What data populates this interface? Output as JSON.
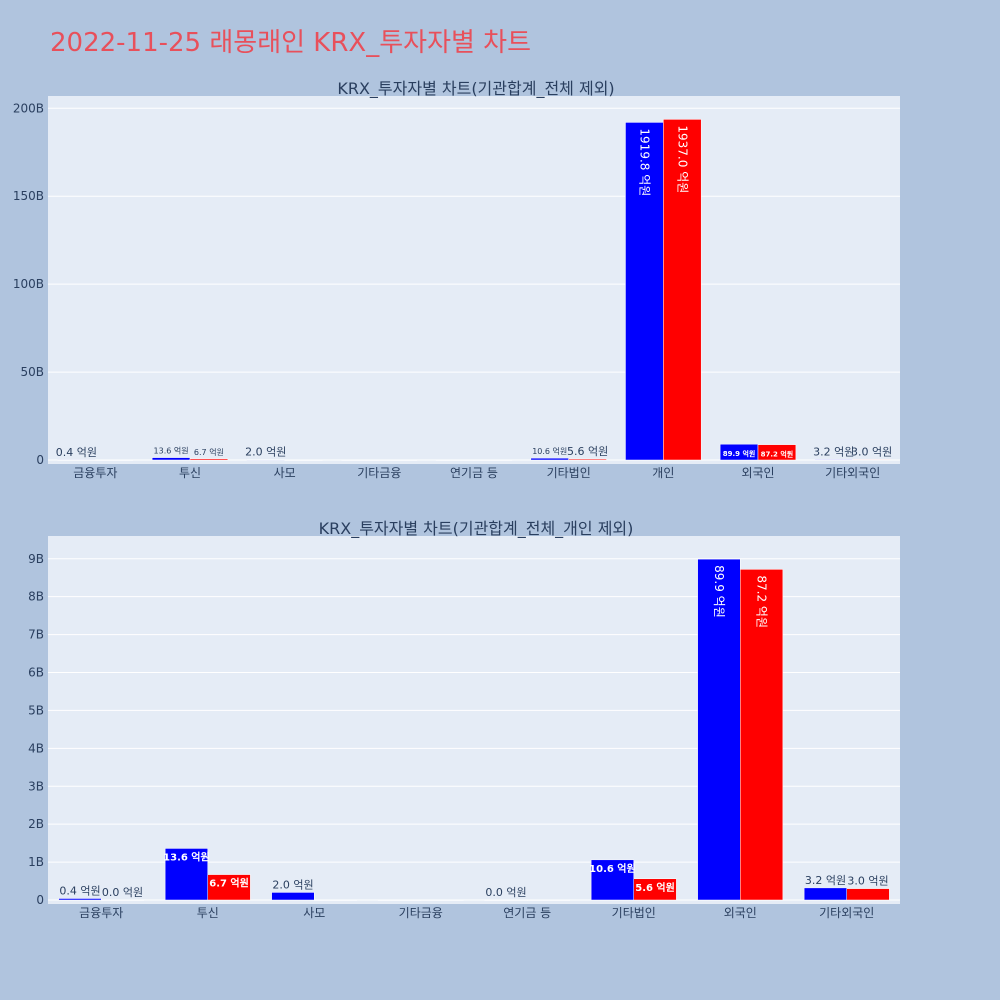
{
  "page": {
    "title": "2022-11-25 래몽래인 KRX_투자자별 차트"
  },
  "colors": {
    "background": "#b0c4de",
    "plot_bg": "#e5ecf6",
    "buy": "#0000ff",
    "sell": "#ff0000",
    "title": "#e8505b",
    "text": "#2a3f5f"
  },
  "chart_data": [
    {
      "type": "bar",
      "title": "KRX_투자자별 차트(기관합계_전체 제외)",
      "categories": [
        "금융투자",
        "투신",
        "사모",
        "기타금융",
        "연기금 등",
        "기타법인",
        "개인",
        "외국인",
        "기타외국인"
      ],
      "series": [
        {
          "values": [
            0.04,
            1.36,
            0.2,
            0,
            0,
            1.06,
            191.98,
            8.99,
            0.32
          ],
          "labels": [
            "0.4 억원",
            "13.6 억원",
            "2.0 억원",
            "",
            "",
            "10.6 억원",
            "1919.8 억원",
            "89.9 억원",
            "3.2 억원"
          ]
        },
        {
          "values": [
            0,
            0.67,
            0,
            0,
            0,
            0.56,
            193.7,
            8.72,
            0.3
          ],
          "labels": [
            "",
            "6.7 억원",
            "",
            "",
            "",
            "5.6 억원",
            "1937.0 억원",
            "87.2 억원",
            "3.0 억원"
          ]
        }
      ],
      "yticks": [
        "0",
        "50B",
        "100B",
        "150B",
        "200B"
      ],
      "ylim": [
        0,
        207
      ],
      "grid": true
    },
    {
      "type": "bar",
      "title": "KRX_투자자별 차트(기관합계_전체_개인 제외)",
      "categories": [
        "금융투자",
        "투신",
        "사모",
        "기타금융",
        "연기금 등",
        "기타법인",
        "외국인",
        "기타외국인"
      ],
      "series": [
        {
          "values": [
            0.04,
            1.36,
            0.2,
            0,
            0,
            1.06,
            8.99,
            0.32
          ],
          "labels": [
            "0.4 억원",
            "13.6 억원",
            "2.0 억원",
            "",
            "0.0 억원",
            "10.6 억원",
            "89.9 억원",
            "3.2 억원"
          ]
        },
        {
          "values": [
            0,
            0.67,
            0,
            0,
            0,
            0.56,
            8.72,
            0.3
          ],
          "labels": [
            "0.0 억원",
            "6.7 억원",
            "",
            "",
            "",
            "5.6 억원",
            "87.2 억원",
            "3.0 억원"
          ]
        }
      ],
      "yticks": [
        "0",
        "1B",
        "2B",
        "3B",
        "4B",
        "5B",
        "6B",
        "7B",
        "8B",
        "9B"
      ],
      "ylim": [
        0,
        9.6
      ],
      "grid": true
    }
  ]
}
